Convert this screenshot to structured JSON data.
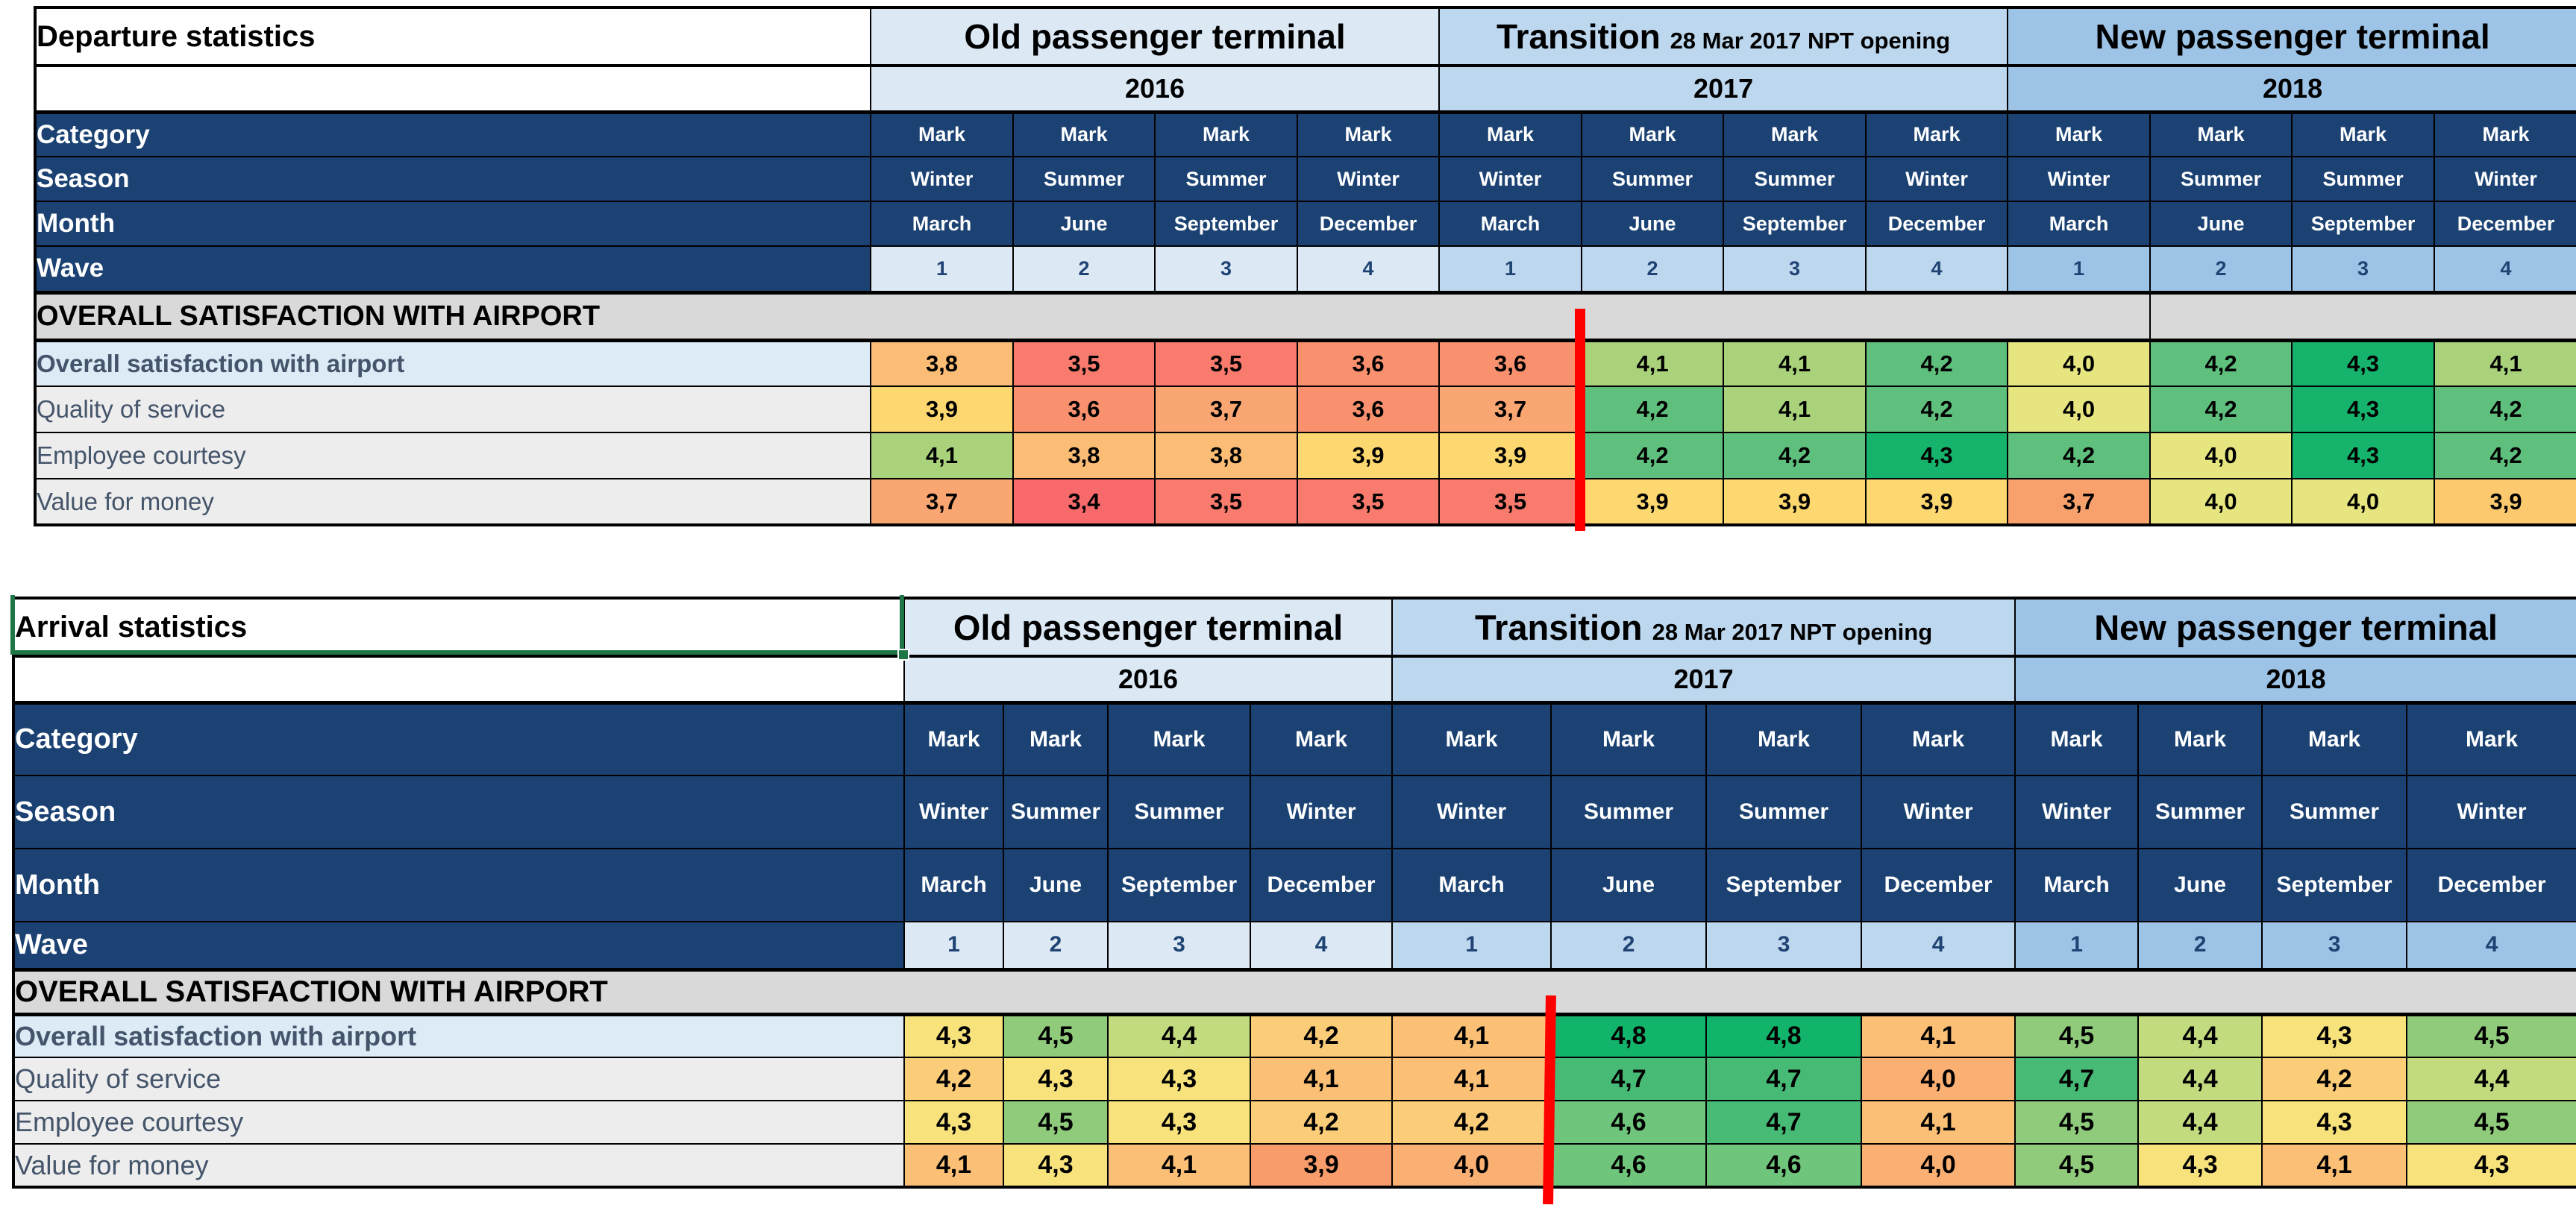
{
  "app": {
    "type": "spreadsheet-report"
  },
  "colors": {
    "navy_header": "#1B4273",
    "old_terminal_bg": "#DCE9F5",
    "transition_bg": "#BDD7EE",
    "new_terminal_bg": "#9DC3E6",
    "section_bg": "#D9D9D9",
    "first_row_label_bg": "#DDEBF7",
    "row_label_bg": "#EDEDED",
    "row_label_text": "#44546A",
    "wave_text": "#1F4373",
    "red_marker": "#FE0000",
    "selection_green": "#1E7546",
    "grid_border": "#000000"
  },
  "header": {
    "category_label": "Category",
    "season_label": "Season",
    "month_label": "Month",
    "wave_label": "Wave",
    "category_values": [
      "Mark",
      "Mark",
      "Mark",
      "Mark",
      "Mark",
      "Mark",
      "Mark",
      "Mark",
      "Mark",
      "Mark",
      "Mark",
      "Mark"
    ],
    "season_values": [
      "Winter",
      "Summer",
      "Summer",
      "Winter",
      "Winter",
      "Summer",
      "Summer",
      "Winter",
      "Winter",
      "Summer",
      "Summer",
      "Winter"
    ],
    "month_values": [
      "March",
      "June",
      "September",
      "December",
      "March",
      "June",
      "September",
      "December",
      "March",
      "June",
      "September",
      "December"
    ],
    "wave_values": [
      "1",
      "2",
      "3",
      "4",
      "1",
      "2",
      "3",
      "4",
      "1",
      "2",
      "3",
      "4"
    ]
  },
  "blocks": [
    {
      "terminal": "Old passenger terminal",
      "terminal_sub": "",
      "year": "2016"
    },
    {
      "terminal": "Transition",
      "terminal_sub": "28 Mar 2017 NPT opening",
      "year": "2017"
    },
    {
      "terminal": "New passenger terminal",
      "terminal_sub": "",
      "year": "2018"
    }
  ],
  "section_header": "OVERALL SATISFACTION WITH AIRPORT",
  "tables": [
    {
      "title": "Departure statistics",
      "rows": [
        {
          "label": "Overall satisfaction with airport",
          "values": [
            {
              "v": "3,8",
              "c": "#FBBD76"
            },
            {
              "v": "3,5",
              "c": "#F87B6D"
            },
            {
              "v": "3,5",
              "c": "#F87B6D"
            },
            {
              "v": "3,6",
              "c": "#F9916F"
            },
            {
              "v": "3,6",
              "c": "#F9916F"
            },
            {
              "v": "4,1",
              "c": "#A9D27B"
            },
            {
              "v": "4,1",
              "c": "#A9D27B"
            },
            {
              "v": "4,2",
              "c": "#5FC07E"
            },
            {
              "v": "4,0",
              "c": "#E6E57F"
            },
            {
              "v": "4,2",
              "c": "#5FC07E"
            },
            {
              "v": "4,3",
              "c": "#15B36B"
            },
            {
              "v": "4,1",
              "c": "#A9D27B"
            }
          ]
        },
        {
          "label": "Quality of service",
          "values": [
            {
              "v": "3,9",
              "c": "#FDD76F"
            },
            {
              "v": "3,6",
              "c": "#F9916F"
            },
            {
              "v": "3,7",
              "c": "#FAA673"
            },
            {
              "v": "3,6",
              "c": "#F9916F"
            },
            {
              "v": "3,7",
              "c": "#FAA673"
            },
            {
              "v": "4,2",
              "c": "#5FC07E"
            },
            {
              "v": "4,1",
              "c": "#A9D27B"
            },
            {
              "v": "4,2",
              "c": "#5FC07E"
            },
            {
              "v": "4,0",
              "c": "#E6E57F"
            },
            {
              "v": "4,2",
              "c": "#5FC07E"
            },
            {
              "v": "4,3",
              "c": "#15B36B"
            },
            {
              "v": "4,2",
              "c": "#5FC07E"
            }
          ]
        },
        {
          "label": "Employee courtesy",
          "values": [
            {
              "v": "4,1",
              "c": "#A9D27B"
            },
            {
              "v": "3,8",
              "c": "#FBBD76"
            },
            {
              "v": "3,8",
              "c": "#FBBD76"
            },
            {
              "v": "3,9",
              "c": "#FDD76F"
            },
            {
              "v": "3,9",
              "c": "#FDD76F"
            },
            {
              "v": "4,2",
              "c": "#5FC07E"
            },
            {
              "v": "4,2",
              "c": "#5FC07E"
            },
            {
              "v": "4,3",
              "c": "#15B36B"
            },
            {
              "v": "4,2",
              "c": "#5FC07E"
            },
            {
              "v": "4,0",
              "c": "#E6E57F"
            },
            {
              "v": "4,3",
              "c": "#15B36B"
            },
            {
              "v": "4,2",
              "c": "#5FC07E"
            }
          ]
        },
        {
          "label": "Value for money",
          "values": [
            {
              "v": "3,7",
              "c": "#FAA673"
            },
            {
              "v": "3,4",
              "c": "#F8696B"
            },
            {
              "v": "3,5",
              "c": "#F87B6D"
            },
            {
              "v": "3,5",
              "c": "#F87B6D"
            },
            {
              "v": "3,5",
              "c": "#F87B6D"
            },
            {
              "v": "3,9",
              "c": "#FDD76F"
            },
            {
              "v": "3,9",
              "c": "#FDD76F"
            },
            {
              "v": "3,9",
              "c": "#FDD76F"
            },
            {
              "v": "3,7",
              "c": "#F9A16C"
            },
            {
              "v": "4,0",
              "c": "#E6E57F"
            },
            {
              "v": "4,0",
              "c": "#E6E57F"
            },
            {
              "v": "3,9",
              "c": "#FCC96E"
            }
          ]
        }
      ]
    },
    {
      "title": "Arrival statistics",
      "rows": [
        {
          "label": "Overall satisfaction with airport",
          "values": [
            {
              "v": "4,3",
              "c": "#F7E27C"
            },
            {
              "v": "4,5",
              "c": "#90CB7C"
            },
            {
              "v": "4,4",
              "c": "#C3DB7F"
            },
            {
              "v": "4,2",
              "c": "#FCCD79"
            },
            {
              "v": "4,1",
              "c": "#FBC076"
            },
            {
              "v": "4,8",
              "c": "#12B36A"
            },
            {
              "v": "4,8",
              "c": "#12B36A"
            },
            {
              "v": "4,1",
              "c": "#FBC076"
            },
            {
              "v": "4,5",
              "c": "#90CB7C"
            },
            {
              "v": "4,4",
              "c": "#C3DB7F"
            },
            {
              "v": "4,3",
              "c": "#F7E27C"
            },
            {
              "v": "4,5",
              "c": "#90CB7C"
            }
          ]
        },
        {
          "label": "Quality of service",
          "values": [
            {
              "v": "4,2",
              "c": "#FCCD79"
            },
            {
              "v": "4,3",
              "c": "#F7E27C"
            },
            {
              "v": "4,3",
              "c": "#F7E27C"
            },
            {
              "v": "4,1",
              "c": "#FBC076"
            },
            {
              "v": "4,1",
              "c": "#FBC076"
            },
            {
              "v": "4,7",
              "c": "#47BB76"
            },
            {
              "v": "4,7",
              "c": "#47BB76"
            },
            {
              "v": "4,0",
              "c": "#FAAF73"
            },
            {
              "v": "4,7",
              "c": "#47BB76"
            },
            {
              "v": "4,4",
              "c": "#C3DB7F"
            },
            {
              "v": "4,2",
              "c": "#FCCD79"
            },
            {
              "v": "4,4",
              "c": "#C3DB7F"
            }
          ]
        },
        {
          "label": "Employee courtesy",
          "values": [
            {
              "v": "4,3",
              "c": "#F7E27C"
            },
            {
              "v": "4,5",
              "c": "#90CB7C"
            },
            {
              "v": "4,3",
              "c": "#F7E27C"
            },
            {
              "v": "4,2",
              "c": "#FCCD79"
            },
            {
              "v": "4,2",
              "c": "#FCCD79"
            },
            {
              "v": "4,6",
              "c": "#6FC57B"
            },
            {
              "v": "4,7",
              "c": "#47BB76"
            },
            {
              "v": "4,1",
              "c": "#FBC076"
            },
            {
              "v": "4,5",
              "c": "#90CB7C"
            },
            {
              "v": "4,4",
              "c": "#C3DB7F"
            },
            {
              "v": "4,3",
              "c": "#F7E27C"
            },
            {
              "v": "4,5",
              "c": "#90CB7C"
            }
          ]
        },
        {
          "label": "Value for money",
          "values": [
            {
              "v": "4,1",
              "c": "#FBC076"
            },
            {
              "v": "4,3",
              "c": "#F7E27C"
            },
            {
              "v": "4,1",
              "c": "#FBC076"
            },
            {
              "v": "3,9",
              "c": "#F99C6C"
            },
            {
              "v": "4,0",
              "c": "#FAAF73"
            },
            {
              "v": "4,6",
              "c": "#6FC57B"
            },
            {
              "v": "4,6",
              "c": "#6FC57B"
            },
            {
              "v": "4,0",
              "c": "#FAAF73"
            },
            {
              "v": "4,5",
              "c": "#90CB7C"
            },
            {
              "v": "4,3",
              "c": "#F7E27C"
            },
            {
              "v": "4,1",
              "c": "#FBC076"
            },
            {
              "v": "4,3",
              "c": "#F7E27C"
            }
          ]
        }
      ]
    }
  ]
}
